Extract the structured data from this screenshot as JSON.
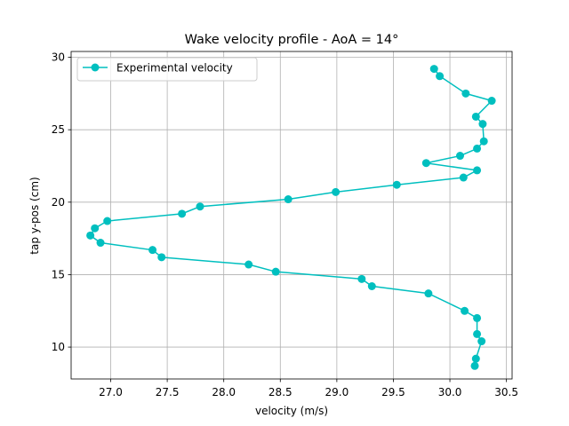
{
  "chart_data": {
    "type": "line",
    "title": "Wake velocity profile - AoA = 14°",
    "xlabel": "velocity (m/s)",
    "ylabel": "tap y-pos (cm)",
    "xlim": [
      26.65,
      30.55
    ],
    "ylim": [
      7.8,
      30.4
    ],
    "xticks": [
      "27.0",
      "27.5",
      "28.0",
      "28.5",
      "29.0",
      "29.5",
      "30.0",
      "30.5"
    ],
    "yticks": [
      "10",
      "15",
      "20",
      "25",
      "30"
    ],
    "grid": true,
    "legend_position": "top-left",
    "series": [
      {
        "name": "Experimental velocity",
        "color": "#00bfbf",
        "marker": "circle",
        "x": [
          29.86,
          29.91,
          30.14,
          30.37,
          30.23,
          30.29,
          30.3,
          30.24,
          30.09,
          29.79,
          30.24,
          30.12,
          29.53,
          28.99,
          28.57,
          27.79,
          27.63,
          26.97,
          26.86,
          26.82,
          26.91,
          27.37,
          27.45,
          28.22,
          28.46,
          29.22,
          29.31,
          29.81,
          30.13,
          30.24,
          30.24,
          30.28,
          30.23,
          30.22
        ],
        "y": [
          29.2,
          28.7,
          27.5,
          27.0,
          25.9,
          25.4,
          24.2,
          23.7,
          23.2,
          22.7,
          22.2,
          21.7,
          21.2,
          20.7,
          20.2,
          19.7,
          19.2,
          18.7,
          18.2,
          17.7,
          17.2,
          16.7,
          16.2,
          15.7,
          15.2,
          14.7,
          14.2,
          13.7,
          12.5,
          12.0,
          10.9,
          10.4,
          9.2,
          8.7
        ]
      }
    ]
  }
}
